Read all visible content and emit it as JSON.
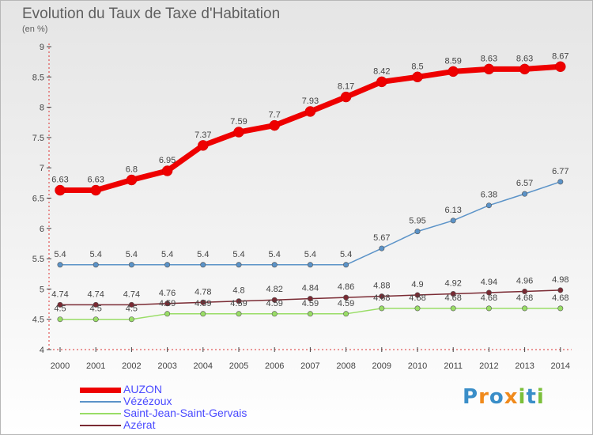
{
  "header": {
    "title": "Evolution du Taux de Taxe d'Habitation",
    "unit": "(en %)"
  },
  "logo": {
    "text": "Proxiti"
  },
  "chart_data": {
    "type": "line",
    "title": "Evolution du Taux de Taxe d'Habitation",
    "ylabel": "(en %)",
    "xlabel": "",
    "x": [
      2000,
      2001,
      2002,
      2003,
      2004,
      2005,
      2006,
      2007,
      2008,
      2009,
      2010,
      2011,
      2012,
      2013,
      2014
    ],
    "ylim": [
      4,
      9
    ],
    "yticks": [
      4,
      4.5,
      5,
      5.5,
      6,
      6.5,
      7,
      7.5,
      8,
      8.5,
      9
    ],
    "grid": false,
    "legend_position": "bottom-left",
    "series": [
      {
        "name": "AUZON",
        "color": "#ee0000",
        "values": [
          6.63,
          6.63,
          6.8,
          6.95,
          7.37,
          7.59,
          7.7,
          7.93,
          8.17,
          8.42,
          8.5,
          8.59,
          8.63,
          8.63,
          8.67
        ],
        "labels": [
          "6.63",
          "6.63",
          "6.8",
          "6.95",
          "7.37",
          "7.59",
          "7.7",
          "7.93",
          "8.17",
          "8.42",
          "8.5",
          "8.59",
          "8.63",
          "8.63",
          "8.67"
        ]
      },
      {
        "name": "Vézézoux",
        "color": "#5b93c8",
        "values": [
          5.4,
          5.4,
          5.4,
          5.4,
          5.4,
          5.4,
          5.4,
          5.4,
          5.4,
          5.67,
          5.95,
          6.13,
          6.38,
          6.57,
          6.77
        ],
        "labels": [
          "5.4",
          "5.4",
          "5.4",
          "5.4",
          "5.4",
          "5.4",
          "5.4",
          "5.4",
          "5.4",
          "5.67",
          "5.95",
          "6.13",
          "6.38",
          "6.57",
          "6.77"
        ]
      },
      {
        "name": "Saint-Jean-Saint-Gervais",
        "color": "#99dd66",
        "values": [
          4.5,
          4.5,
          4.5,
          4.59,
          4.59,
          4.59,
          4.59,
          4.59,
          4.59,
          4.68,
          4.68,
          4.68,
          4.68,
          4.68,
          4.68
        ],
        "labels": [
          "4.5",
          "4.5",
          "4.5",
          "4.59",
          "4.59",
          "4.59",
          "4.59",
          "4.59",
          "4.59",
          "4.68",
          "4.68",
          "4.68",
          "4.68",
          "4.68",
          "4.68"
        ]
      },
      {
        "name": "Azérat",
        "color": "#7a2a33",
        "values": [
          4.74,
          4.74,
          4.74,
          4.76,
          4.78,
          4.8,
          4.82,
          4.84,
          4.86,
          4.88,
          4.9,
          4.92,
          4.94,
          4.96,
          4.98
        ],
        "labels": [
          "4.74",
          "4.74",
          "4.74",
          "4.76",
          "4.78",
          "4.8",
          "4.82",
          "4.84",
          "4.86",
          "4.88",
          "4.9",
          "4.92",
          "4.94",
          "4.96",
          "4.98"
        ]
      }
    ]
  }
}
